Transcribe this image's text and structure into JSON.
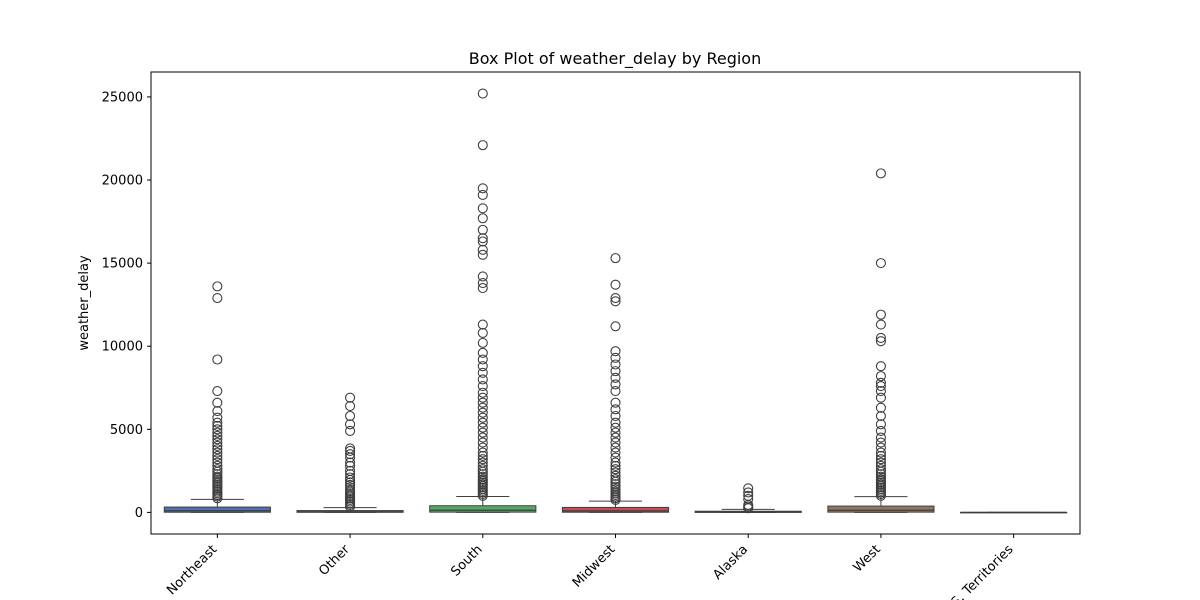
{
  "chart_data": {
    "type": "box",
    "title": "Box Plot of weather_delay by Region",
    "xlabel": "",
    "ylabel": "weather_delay",
    "ylim": [
      -1300,
      26500
    ],
    "yticks": [
      0,
      5000,
      10000,
      15000,
      20000,
      25000
    ],
    "grid": false,
    "categories": [
      "Northeast",
      "Other",
      "South",
      "Midwest",
      "Alaska",
      "West",
      "U.S. Territories"
    ],
    "colors": [
      "#4c72b0",
      "#dd8452",
      "#55a868",
      "#c44e52",
      "#8172b3",
      "#937860",
      "#da8bc3"
    ],
    "boxes": [
      {
        "name": "Northeast",
        "whisker_low": 0,
        "q1": 10,
        "median": 100,
        "q3": 320,
        "whisker_high": 780,
        "outliers": [
          850,
          950,
          1050,
          1150,
          1250,
          1350,
          1450,
          1550,
          1650,
          1750,
          1850,
          1950,
          2050,
          2150,
          2300,
          2450,
          2600,
          2800,
          3000,
          3200,
          3400,
          3600,
          3800,
          4000,
          4200,
          4400,
          4600,
          4800,
          5000,
          5200,
          5400,
          5700,
          6100,
          6600,
          7300,
          9200,
          12900,
          13600
        ]
      },
      {
        "name": "Other",
        "whisker_low": 0,
        "q1": 5,
        "median": 40,
        "q3": 110,
        "whisker_high": 290,
        "outliers": [
          350,
          450,
          550,
          650,
          750,
          850,
          950,
          1050,
          1150,
          1250,
          1350,
          1500,
          1650,
          1800,
          1950,
          2100,
          2300,
          2500,
          2800,
          3000,
          3300,
          3500,
          3700,
          3850,
          4900,
          5300,
          5800,
          6400,
          6900
        ]
      },
      {
        "name": "South",
        "whisker_low": 0,
        "q1": 15,
        "median": 130,
        "q3": 400,
        "whisker_high": 960,
        "outliers": [
          1000,
          1100,
          1200,
          1300,
          1400,
          1500,
          1600,
          1700,
          1800,
          1900,
          2000,
          2150,
          2300,
          2450,
          2600,
          2800,
          3000,
          3200,
          3400,
          3600,
          3900,
          4200,
          4500,
          4800,
          5100,
          5400,
          5700,
          6000,
          6300,
          6600,
          6900,
          7200,
          7600,
          8000,
          8400,
          8800,
          9200,
          9600,
          10200,
          10800,
          11300,
          13500,
          13800,
          14200,
          15500,
          15800,
          16300,
          16500,
          17000,
          17700,
          18300,
          19100,
          19500,
          22100,
          25200
        ]
      },
      {
        "name": "Midwest",
        "whisker_low": 0,
        "q1": 10,
        "median": 90,
        "q3": 300,
        "whisker_high": 680,
        "outliers": [
          750,
          850,
          950,
          1050,
          1150,
          1250,
          1400,
          1550,
          1700,
          1850,
          2000,
          2200,
          2400,
          2600,
          2800,
          3000,
          3300,
          3600,
          3900,
          4200,
          4500,
          4800,
          5100,
          5400,
          5800,
          6200,
          6600,
          7300,
          7700,
          8100,
          8500,
          8900,
          9300,
          9700,
          11200,
          12700,
          12900,
          13700,
          15300
        ]
      },
      {
        "name": "Alaska",
        "whisker_low": 0,
        "q1": 2,
        "median": 15,
        "q3": 70,
        "whisker_high": 180,
        "outliers": [
          250,
          350,
          450,
          800,
          1000,
          1200,
          1450
        ]
      },
      {
        "name": "West",
        "whisker_low": 0,
        "q1": 15,
        "median": 130,
        "q3": 380,
        "whisker_high": 950,
        "outliers": [
          1000,
          1100,
          1200,
          1300,
          1400,
          1500,
          1600,
          1700,
          1800,
          1900,
          2000,
          2150,
          2300,
          2450,
          2600,
          2800,
          3000,
          3200,
          3400,
          3600,
          3900,
          4200,
          4500,
          4900,
          5300,
          5800,
          6300,
          6900,
          7300,
          7600,
          7800,
          8200,
          8800,
          10300,
          10500,
          11300,
          11900,
          15000,
          20400
        ]
      },
      {
        "name": "U.S. Territories",
        "whisker_low": 0,
        "q1": 0,
        "median": 0,
        "q3": 0,
        "whisker_high": 0,
        "outliers": []
      }
    ]
  }
}
